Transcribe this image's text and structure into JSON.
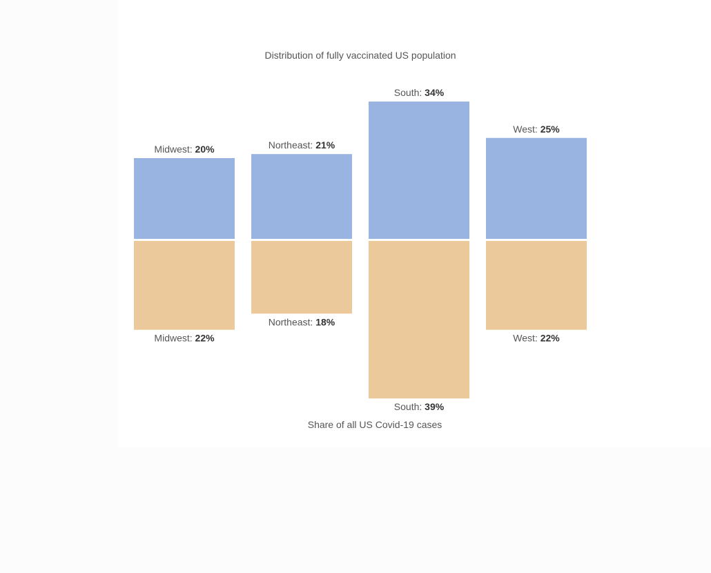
{
  "chart_data": {
    "type": "bar",
    "title": "Distribution of fully vaccinated US population",
    "subtitle": "Share of all US Covid-19 cases",
    "categories": [
      "Midwest",
      "Northeast",
      "South",
      "West"
    ],
    "series": [
      {
        "name": "Distribution of fully vaccinated US population",
        "values": [
          20,
          21,
          34,
          25
        ],
        "labels": [
          "20%",
          "21%",
          "34%",
          "25%"
        ],
        "color": "#9ab4e2"
      },
      {
        "name": "Share of all US Covid-19 cases",
        "values": [
          22,
          18,
          39,
          22
        ],
        "labels": [
          "22%",
          "18%",
          "39%",
          "22%"
        ],
        "color": "#ecc99b"
      }
    ],
    "layout": "diverging vertical bars; top series upward, bottom series downward",
    "grid": false
  }
}
